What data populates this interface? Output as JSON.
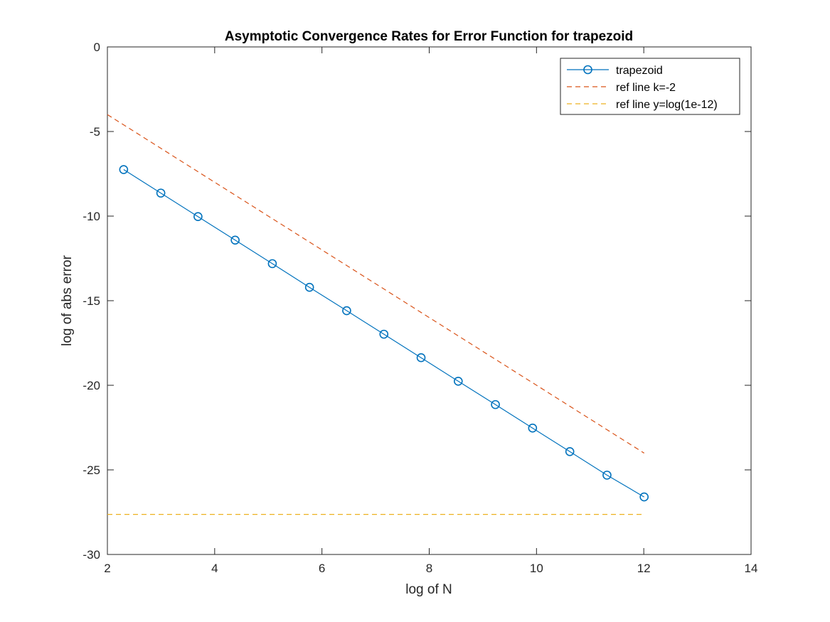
{
  "chart_data": {
    "type": "line",
    "title": "Asymptotic Convergence Rates for Error Function for trapezoid",
    "xlabel": "log of N",
    "ylabel": "log of abs error",
    "xlim": [
      2,
      14
    ],
    "ylim": [
      -30,
      0
    ],
    "xticks": [
      2,
      4,
      6,
      8,
      10,
      12,
      14
    ],
    "yticks": [
      0,
      -5,
      -10,
      -15,
      -20,
      -25,
      -30
    ],
    "grid": false,
    "legend_position": "top-right",
    "series": [
      {
        "name": "trapezoid",
        "color": "#0072BD",
        "line_style": "solid",
        "marker": "circle",
        "x": [
          2.303,
          2.996,
          3.689,
          4.382,
          5.075,
          5.768,
          6.461,
          7.155,
          7.848,
          8.541,
          9.234,
          9.927,
          10.621,
          11.314,
          12.007
        ],
        "y": [
          -7.25,
          -8.64,
          -10.03,
          -11.42,
          -12.81,
          -14.21,
          -15.59,
          -16.98,
          -18.37,
          -19.76,
          -21.14,
          -22.53,
          -23.92,
          -25.31,
          -26.6
        ]
      },
      {
        "name": "ref line k=-2",
        "color": "#D95319",
        "line_style": "dashed",
        "marker": "none",
        "x": [
          2.0,
          12.007
        ],
        "y": [
          -4.0,
          -24.01
        ]
      },
      {
        "name": "ref line y=log(1e-12)",
        "color": "#EDB120",
        "line_style": "dashed",
        "marker": "none",
        "x": [
          2.0,
          12.007
        ],
        "y": [
          -27.63,
          -27.63
        ]
      }
    ]
  }
}
